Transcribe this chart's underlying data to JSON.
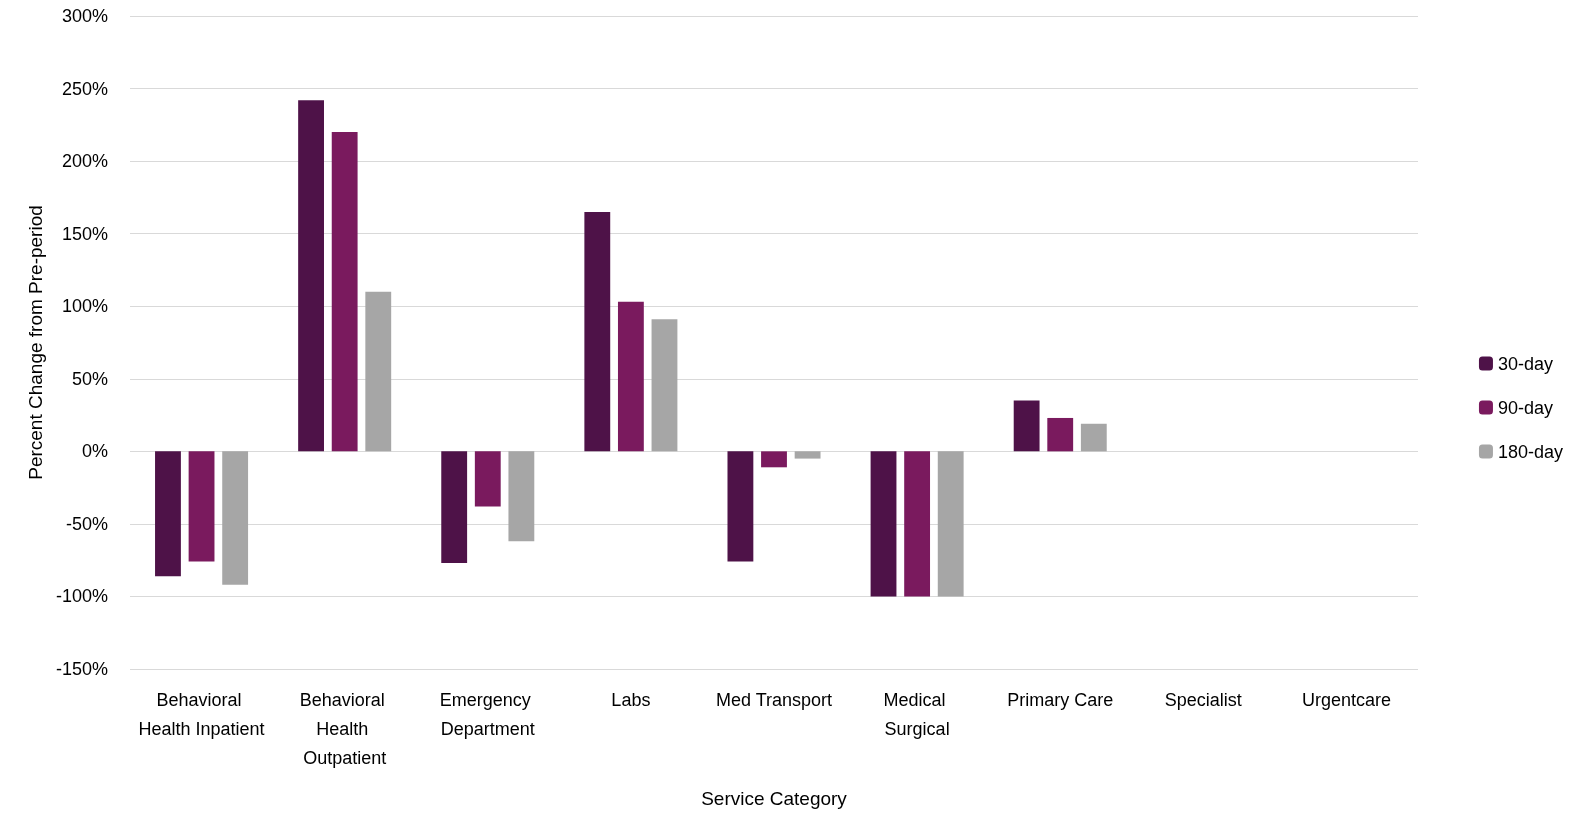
{
  "chart_data": {
    "type": "bar",
    "xlabel": "Service Category",
    "ylabel": "Percent Change from Pre-period",
    "categories": [
      "Behavioral Health Inpatient",
      "Behavioral Health Outpatient",
      "Emergency Department",
      "Labs",
      "Med Transport",
      "Medical Surgical",
      "Primary Care",
      "Specialist",
      "Urgentcare"
    ],
    "series": [
      {
        "name": "30-day",
        "color": "#4e1248",
        "values": [
          -86,
          242,
          -77,
          165,
          -76,
          -100,
          35,
          null,
          null
        ]
      },
      {
        "name": "90-day",
        "color": "#7a1a5e",
        "values": [
          -76,
          220,
          -38,
          103,
          -11,
          -100,
          23,
          null,
          null
        ]
      },
      {
        "name": "180-day",
        "color": "#a6a6a6",
        "values": [
          -92,
          110,
          -62,
          91,
          -5,
          -100,
          19,
          null,
          null
        ]
      }
    ],
    "ylim": [
      -150,
      300
    ],
    "yticks": [
      {
        "value": -150,
        "label": "-150%"
      },
      {
        "value": -100,
        "label": "-100%"
      },
      {
        "value": -50,
        "label": "-50%"
      },
      {
        "value": 0,
        "label": "0%"
      },
      {
        "value": 50,
        "label": "50%"
      },
      {
        "value": 100,
        "label": "100%"
      },
      {
        "value": 150,
        "label": "150%"
      },
      {
        "value": 200,
        "label": "200%"
      },
      {
        "value": 250,
        "label": "250%"
      },
      {
        "value": 300,
        "label": "300%"
      }
    ],
    "grid": "y",
    "legend": "right"
  }
}
